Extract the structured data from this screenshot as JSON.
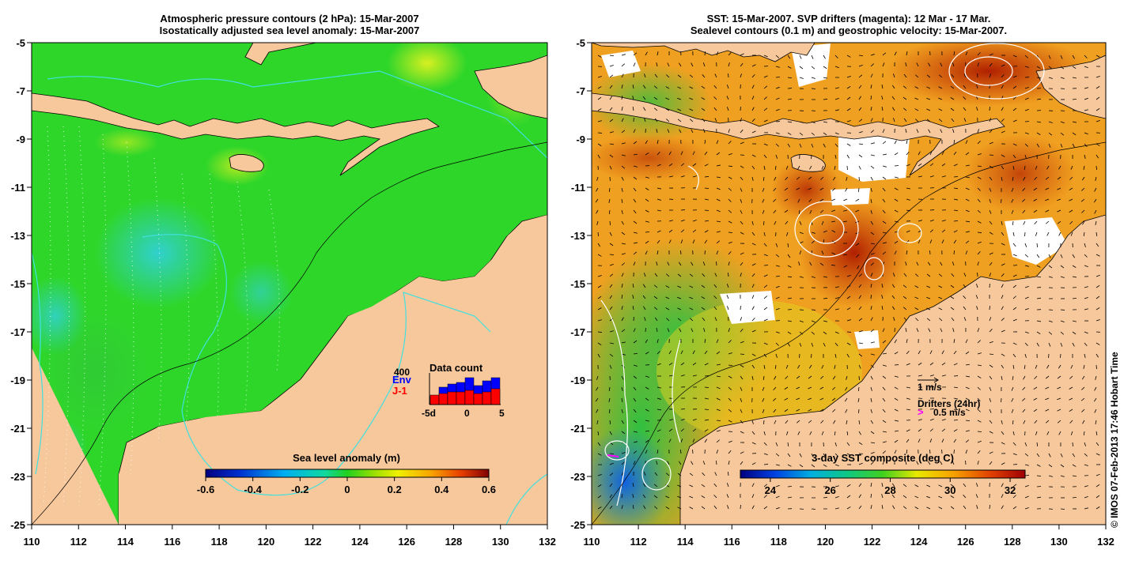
{
  "left_panel": {
    "title_line1": "Atmospheric pressure contours (2 hPa): 15-Mar-2007",
    "title_line2": "Isostatically adjusted sea level anomaly: 15-Mar-2007",
    "colorbar": {
      "label": "Sea level anomaly (m)",
      "ticks": [
        "-0.6",
        "-0.4",
        "-0.2",
        "0",
        "0.2",
        "0.4",
        "0.6"
      ],
      "min": -0.6,
      "max": 0.6
    },
    "data_count": {
      "title": "Data count",
      "max_label": "400",
      "env_label": "Env",
      "j1_label": "J-1",
      "x_ticks": [
        "-5d",
        "0",
        "5"
      ],
      "env_color": "#0000ff",
      "j1_color": "#ff0000"
    }
  },
  "right_panel": {
    "title_line1": "SST: 15-Mar-2007. SVP drifters (magenta): 12 Mar - 17 Mar.",
    "title_line2": "Sealevel contours (0.1 m) and geostrophic velocity: 15-Mar-2007.",
    "velocity_scale_label": "1 m/s",
    "drifters_label": "Drifters (24hr)",
    "drifter_speed_label": "0.5 m/s",
    "drifter_color": "#ff00ff",
    "colorbar": {
      "label": "3-day SST composite (deg C)",
      "ticks": [
        "24",
        "26",
        "28",
        "30",
        "32"
      ],
      "min": 23,
      "max": 32.5
    }
  },
  "axes": {
    "lon_ticks": [
      "110",
      "112",
      "114",
      "116",
      "118",
      "120",
      "122",
      "124",
      "126",
      "128",
      "130",
      "132"
    ],
    "lat_ticks": [
      "-5",
      "-7",
      "-9",
      "-11",
      "-13",
      "-15",
      "-17",
      "-19",
      "-21",
      "-23",
      "-25"
    ]
  },
  "colors": {
    "land": "#f7c89c",
    "sea_base_left": "#2fd62a",
    "sea_base_right": "#f0a020"
  },
  "credit": "© IMOS 07-Feb-2013 17:46 Hobart Time"
}
